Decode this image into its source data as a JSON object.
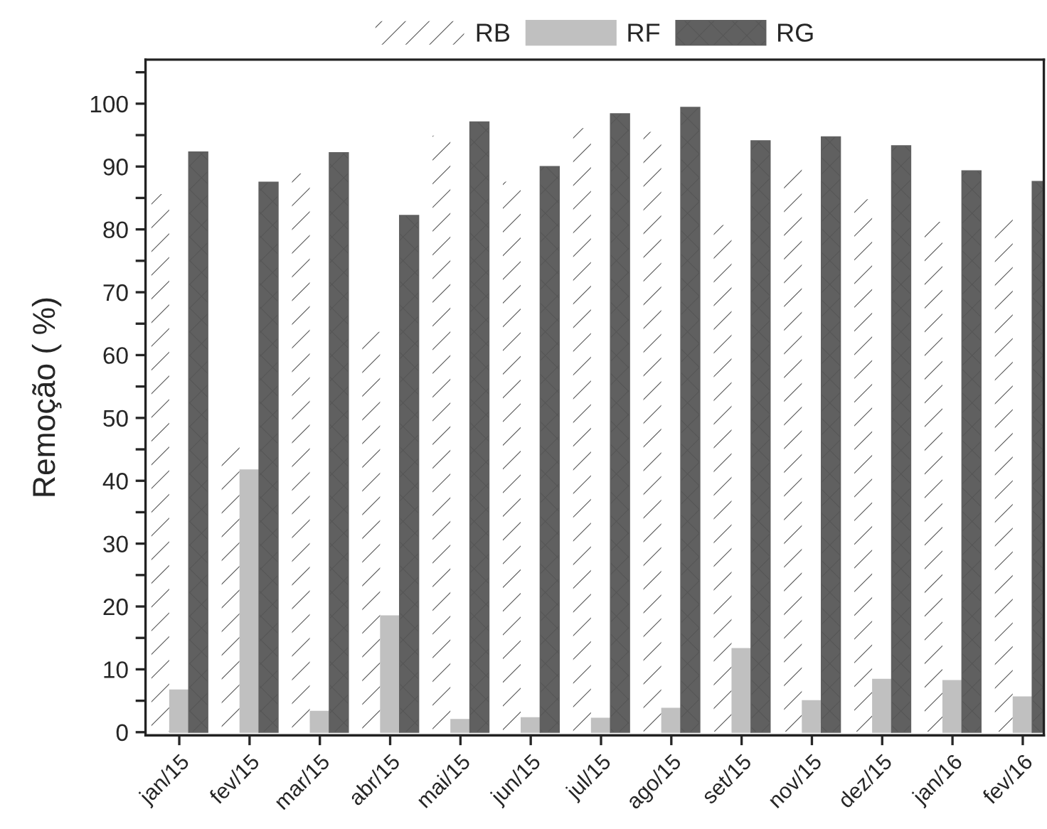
{
  "chart_data": {
    "type": "bar",
    "ylabel": "Remoção ( %)",
    "categories": [
      "jan/15",
      "fev/15",
      "mar/15",
      "abr/15",
      "mai/15",
      "jun/15",
      "jul/15",
      "ago/15",
      "set/15",
      "nov/15",
      "dez/15",
      "jan/16",
      "fev/16"
    ],
    "series": [
      {
        "name": "RB",
        "color": "#ffffff",
        "values": [
          85.7,
          46,
          89,
          63.8,
          95,
          87.7,
          96.2,
          95.6,
          80.8,
          89.8,
          84.9,
          81.3,
          82.1
        ]
      },
      {
        "name": "RF",
        "color": "#c0c0c0",
        "values": [
          6.7,
          41.7,
          3.3,
          18.5,
          2,
          2.3,
          2.2,
          3.8,
          13.3,
          5,
          8.4,
          8.2,
          5.6
        ]
      },
      {
        "name": "RG",
        "color": "#606060",
        "values": [
          92.3,
          87.5,
          92.2,
          82.2,
          97.1,
          90,
          98.4,
          99.4,
          94.1,
          94.7,
          93.3,
          89.3,
          87.6
        ]
      }
    ],
    "ylim": [
      -0.5,
      107
    ],
    "yticks": [
      0,
      {
        "value": 5,
        "label": null
      },
      10,
      {
        "value": 15,
        "label": null
      },
      20,
      {
        "value": 25,
        "label": null
      },
      30,
      {
        "value": 35,
        "label": null
      },
      40,
      {
        "value": 45,
        "label": null
      },
      50,
      {
        "value": 55,
        "label": null
      },
      60,
      {
        "value": 65,
        "label": null
      },
      70,
      {
        "value": 75,
        "label": null
      },
      80,
      {
        "value": 85,
        "label": null
      },
      90,
      {
        "value": 95,
        "label": null
      },
      100,
      {
        "value": 105,
        "label": null
      }
    ],
    "grid": false,
    "legend": "top"
  }
}
